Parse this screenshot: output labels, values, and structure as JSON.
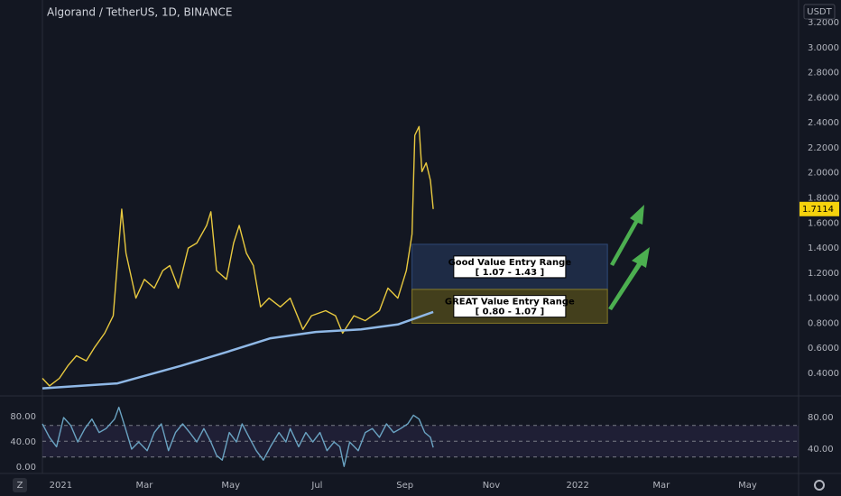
{
  "chart_data": [
    {
      "type": "line",
      "title": "Algorand / TetherUS, 1D, BINANCE",
      "currency": "USDT",
      "footer_icon": "Z",
      "xlim": [
        -13,
        521
      ],
      "xticks": [
        {
          "value": 0,
          "label": "2021"
        },
        {
          "value": 59,
          "label": "Mar"
        },
        {
          "value": 120,
          "label": "May"
        },
        {
          "value": 181,
          "label": "Jul"
        },
        {
          "value": 243,
          "label": "Sep"
        },
        {
          "value": 304,
          "label": "Nov"
        },
        {
          "value": 365,
          "label": "2022"
        },
        {
          "value": 424,
          "label": "Mar"
        },
        {
          "value": 485,
          "label": "May"
        }
      ],
      "ylim": [
        0.227,
        3.38
      ],
      "yticks": [
        {
          "value": 0.4,
          "label": "0.4000"
        },
        {
          "value": 0.6,
          "label": "0.6000"
        },
        {
          "value": 0.8,
          "label": "0.8000"
        },
        {
          "value": 1.0,
          "label": "1.0000"
        },
        {
          "value": 1.2,
          "label": "1.2000"
        },
        {
          "value": 1.4,
          "label": "1.4000"
        },
        {
          "value": 1.6,
          "label": "1.6000"
        },
        {
          "value": 1.8,
          "label": "1.8000"
        },
        {
          "value": 2.0,
          "label": "2.0000"
        },
        {
          "value": 2.2,
          "label": "2.2000"
        },
        {
          "value": 2.4,
          "label": "2.4000"
        },
        {
          "value": 2.6,
          "label": "2.6000"
        },
        {
          "value": 2.8,
          "label": "2.8000"
        },
        {
          "value": 3.0,
          "label": "3.0000"
        },
        {
          "value": 3.2,
          "label": "3.2000"
        }
      ],
      "series": [
        {
          "color": "#e8c93f",
          "x": [
            -13,
            -8,
            -1,
            5,
            11,
            18,
            24,
            31,
            37,
            40,
            43,
            46,
            53,
            59,
            66,
            72,
            77,
            83,
            90,
            96,
            103,
            106,
            110,
            117,
            122,
            126,
            131,
            136,
            141,
            147,
            155,
            162,
            171,
            177,
            187,
            194,
            199,
            207,
            215,
            225,
            231,
            238,
            244,
            248,
            250,
            253,
            255,
            258,
            261,
            263
          ],
          "values": [
            0.36,
            0.3,
            0.36,
            0.46,
            0.54,
            0.5,
            0.61,
            0.72,
            0.86,
            1.29,
            1.71,
            1.36,
            1.0,
            1.15,
            1.08,
            1.22,
            1.26,
            1.08,
            1.4,
            1.44,
            1.58,
            1.69,
            1.22,
            1.15,
            1.44,
            1.58,
            1.36,
            1.26,
            0.93,
            1.0,
            0.93,
            1.0,
            0.75,
            0.86,
            0.9,
            0.86,
            0.72,
            0.86,
            0.82,
            0.9,
            1.08,
            1.0,
            1.22,
            1.51,
            2.3,
            2.37,
            2.01,
            2.08,
            1.94,
            1.7114
          ]
        },
        {
          "color": "#8fb8e6",
          "x": [
            -13,
            40,
            85,
            117,
            148,
            180,
            212,
            238,
            263
          ],
          "values": [
            0.28,
            0.32,
            0.46,
            0.57,
            0.68,
            0.73,
            0.75,
            0.79,
            0.89
          ]
        }
      ],
      "last_price": 1.7114,
      "last_price_color": "#f5d20d",
      "annotations": [
        {
          "text": "Good Value Entry Range",
          "range_label": "[ 1.07 - 1.43 ]",
          "low": 1.07,
          "high": 1.43,
          "x_start": 248,
          "x_end": 386,
          "color": "#1e2b45",
          "border": "#2f4a78"
        },
        {
          "text": "GREAT Value Entry Range",
          "range_label": "[ 0.80 - 1.07 ]",
          "low": 0.8,
          "high": 1.07,
          "x_start": 248,
          "x_end": 386,
          "color": "#433f1c",
          "border": "#857827"
        }
      ]
    },
    {
      "type": "line",
      "ylim": [
        9.1,
        106.3
      ],
      "yticks": [
        {
          "value": 40,
          "label": "40.00"
        },
        {
          "value": 80,
          "label": "80.00"
        }
      ],
      "y2lim": [
        -10,
        111.4
      ],
      "y2ticks": [
        {
          "value": 0,
          "label": "0.00"
        },
        {
          "value": 40,
          "label": "40.00"
        },
        {
          "value": 80,
          "label": "80.00"
        }
      ],
      "levels": [
        70,
        50,
        30
      ],
      "series": [
        {
          "color": "#6aa3c2",
          "x": [
            -13,
            -8,
            -3,
            2,
            7,
            12,
            17,
            22,
            27,
            32,
            38,
            41,
            45,
            50,
            55,
            61,
            66,
            71,
            76,
            81,
            86,
            91,
            96,
            101,
            106,
            110,
            114,
            119,
            124,
            128,
            133,
            138,
            143,
            148,
            154,
            159,
            162,
            168,
            173,
            178,
            183,
            188,
            193,
            197,
            200,
            204,
            210,
            215,
            220,
            225,
            230,
            235,
            240,
            245,
            249,
            253,
            257,
            261,
            263
          ],
          "values": [
            72,
            55,
            43,
            80,
            70,
            49,
            66,
            78,
            61,
            66,
            78,
            93,
            70,
            40,
            49,
            38,
            61,
            72,
            38,
            61,
            72,
            61,
            49,
            66,
            49,
            32,
            26,
            61,
            49,
            72,
            55,
            38,
            26,
            43,
            61,
            49,
            66,
            43,
            61,
            49,
            61,
            38,
            49,
            43,
            18,
            49,
            38,
            61,
            66,
            55,
            72,
            61,
            66,
            72,
            83,
            78,
            61,
            55,
            42
          ]
        }
      ]
    }
  ]
}
